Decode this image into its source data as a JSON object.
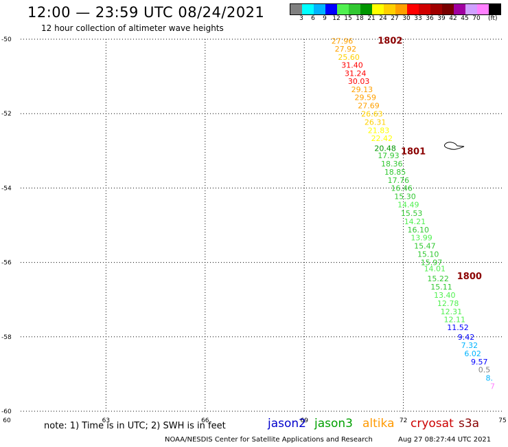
{
  "header": {
    "title": "12:00 — 23:59 UTC 08/24/2021",
    "subtitle": "12 hour collection of altimeter wave heights",
    "unit": "(ft)"
  },
  "scale": {
    "colors": [
      "#808080",
      "#00ffff",
      "#00b4ff",
      "#0000ff",
      "#50f050",
      "#32c832",
      "#009600",
      "#ffff00",
      "#ffd000",
      "#ffa000",
      "#ff0000",
      "#d00000",
      "#a00000",
      "#780000",
      "#a000a0",
      "#d0a0ff",
      "#ff80ff",
      "#000000"
    ],
    "labels": [
      "3",
      "6",
      "9",
      "12",
      "15",
      "18",
      "21",
      "24",
      "27",
      "30",
      "33",
      "36",
      "39",
      "42",
      "45",
      "70"
    ]
  },
  "axes": {
    "x_ticks": [
      60,
      63,
      66,
      69,
      72,
      75
    ],
    "x_tick_labels": [
      "60",
      "63",
      "66",
      "69",
      "72",
      "75"
    ],
    "y_ticks": [
      -50,
      -52,
      -54,
      -56,
      -58,
      -60
    ],
    "y_tick_labels": [
      "-50",
      "-52",
      "-54",
      "-56",
      "-58",
      "-60"
    ],
    "xlim": [
      60,
      75
    ],
    "ylim": [
      -60,
      -50
    ]
  },
  "track_labels": [
    {
      "text": "1802",
      "lon": 71.6,
      "lat": -50.12
    },
    {
      "text": "1801",
      "lon": 72.3,
      "lat": -53.1
    },
    {
      "text": "1800",
      "lon": 74.0,
      "lat": -56.45
    }
  ],
  "observations": [
    {
      "v": "27.96",
      "lon": 70.15,
      "lat": -50.12,
      "c": "#ffa000"
    },
    {
      "v": "27.92",
      "lon": 70.25,
      "lat": -50.33,
      "c": "#ffa000"
    },
    {
      "v": "25.60",
      "lon": 70.35,
      "lat": -50.55,
      "c": "#ffd000"
    },
    {
      "v": "31.40",
      "lon": 70.45,
      "lat": -50.77,
      "c": "#ff0000"
    },
    {
      "v": "31.24",
      "lon": 70.55,
      "lat": -50.99,
      "c": "#ff0000"
    },
    {
      "v": "30.03",
      "lon": 70.65,
      "lat": -51.2,
      "c": "#ff0000"
    },
    {
      "v": "29.13",
      "lon": 70.75,
      "lat": -51.42,
      "c": "#ffa000"
    },
    {
      "v": "29.59",
      "lon": 70.85,
      "lat": -51.64,
      "c": "#ffa000"
    },
    {
      "v": "27.69",
      "lon": 70.95,
      "lat": -51.86,
      "c": "#ffa000"
    },
    {
      "v": "26.63",
      "lon": 71.05,
      "lat": -52.08,
      "c": "#ffd000"
    },
    {
      "v": "26.31",
      "lon": 71.15,
      "lat": -52.3,
      "c": "#ffd000"
    },
    {
      "v": "21.83",
      "lon": 71.25,
      "lat": -52.52,
      "c": "#ffff00"
    },
    {
      "v": "22.42",
      "lon": 71.35,
      "lat": -52.74,
      "c": "#ffff00"
    },
    {
      "v": "20.48",
      "lon": 71.45,
      "lat": -53.0,
      "c": "#009600"
    },
    {
      "v": "17.93",
      "lon": 71.55,
      "lat": -53.2,
      "c": "#32c832"
    },
    {
      "v": "18.36",
      "lon": 71.65,
      "lat": -53.42,
      "c": "#32c832"
    },
    {
      "v": "18.85",
      "lon": 71.75,
      "lat": -53.64,
      "c": "#32c832"
    },
    {
      "v": "17.76",
      "lon": 71.85,
      "lat": -53.86,
      "c": "#32c832"
    },
    {
      "v": "16.46",
      "lon": 71.95,
      "lat": -54.08,
      "c": "#32c832"
    },
    {
      "v": "15.30",
      "lon": 72.05,
      "lat": -54.3,
      "c": "#32c832"
    },
    {
      "v": "14.49",
      "lon": 72.15,
      "lat": -54.52,
      "c": "#50f050"
    },
    {
      "v": "15.53",
      "lon": 72.25,
      "lat": -54.75,
      "c": "#32c832"
    },
    {
      "v": "14.21",
      "lon": 72.35,
      "lat": -54.97,
      "c": "#50f050"
    },
    {
      "v": "16.10",
      "lon": 72.45,
      "lat": -55.19,
      "c": "#32c832"
    },
    {
      "v": "13.99",
      "lon": 72.55,
      "lat": -55.41,
      "c": "#50f050"
    },
    {
      "v": "15.47",
      "lon": 72.65,
      "lat": -55.63,
      "c": "#32c832"
    },
    {
      "v": "15.10",
      "lon": 72.75,
      "lat": -55.85,
      "c": "#32c832"
    },
    {
      "v": "15.97",
      "lon": 72.85,
      "lat": -56.07,
      "c": "#32c832"
    },
    {
      "v": "14.01",
      "lon": 72.95,
      "lat": -56.24,
      "c": "#50f050"
    },
    {
      "v": "15.22",
      "lon": 73.05,
      "lat": -56.51,
      "c": "#32c832"
    },
    {
      "v": "15.11",
      "lon": 73.15,
      "lat": -56.73,
      "c": "#32c832"
    },
    {
      "v": "13.40",
      "lon": 73.25,
      "lat": -56.95,
      "c": "#50f050"
    },
    {
      "v": "12.78",
      "lon": 73.35,
      "lat": -57.17,
      "c": "#50f050"
    },
    {
      "v": "12.31",
      "lon": 73.45,
      "lat": -57.39,
      "c": "#50f050"
    },
    {
      "v": "12.11",
      "lon": 73.55,
      "lat": -57.61,
      "c": "#50f050"
    },
    {
      "v": "11.52",
      "lon": 73.65,
      "lat": -57.82,
      "c": "#0000ff"
    },
    {
      "v": "9.42",
      "lon": 73.9,
      "lat": -58.08,
      "c": "#0000ff"
    },
    {
      "v": "7.32",
      "lon": 74.0,
      "lat": -58.3,
      "c": "#00b4ff"
    },
    {
      "v": "6.02",
      "lon": 74.1,
      "lat": -58.52,
      "c": "#00b4ff"
    },
    {
      "v": "9.57",
      "lon": 74.3,
      "lat": -58.74,
      "c": "#0000ff"
    },
    {
      "v": "0.5",
      "lon": 74.45,
      "lat": -58.96,
      "c": "#808080"
    },
    {
      "v": "8.",
      "lon": 74.6,
      "lat": -59.18,
      "c": "#00b4ff"
    },
    {
      "v": "7",
      "lon": 74.7,
      "lat": -59.4,
      "c": "#ff80ff"
    }
  ],
  "footer": {
    "note": "note: 1) Time is in UTC; 2) SWH is in feet",
    "legend": [
      {
        "name": "jason2",
        "color": "#0000cc"
      },
      {
        "name": "jason3",
        "color": "#00a000"
      },
      {
        "name": "altika",
        "color": "#ff9900"
      },
      {
        "name": "cryosat",
        "color": "#cc0000"
      },
      {
        "name": "s3a",
        "color": "#880000"
      }
    ],
    "credit": "NOAA/NESDIS Center for Satellite Applications and Research",
    "timestamp": "Aug 27 08:27:44 UTC 2021"
  }
}
